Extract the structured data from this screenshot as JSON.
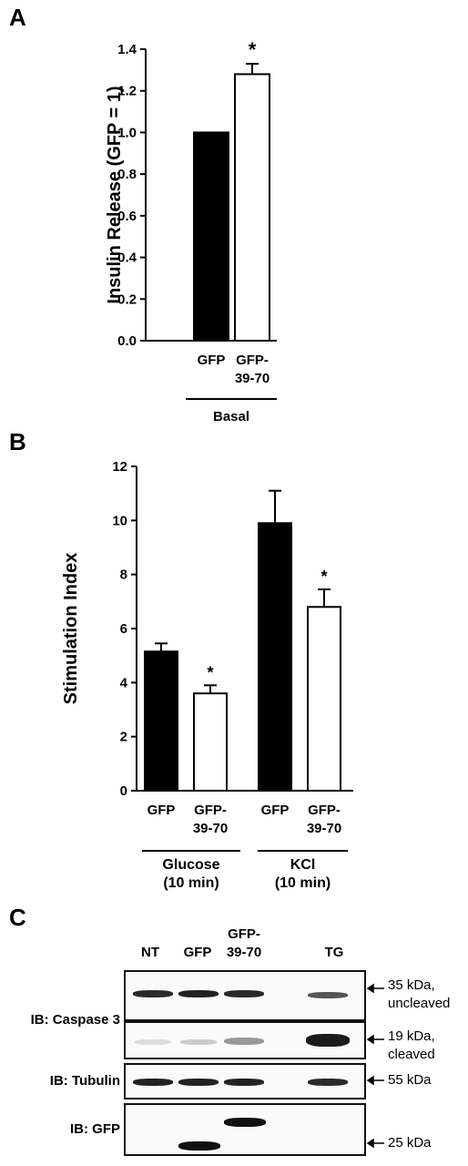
{
  "panelA": {
    "letter": "A",
    "chart_data": {
      "type": "bar",
      "categories": [
        "GFP",
        "GFP-39-70"
      ],
      "category_lines": [
        [
          "GFP"
        ],
        [
          "GFP-",
          "39-70"
        ]
      ],
      "values": [
        1.0,
        1.28
      ],
      "errors": [
        0,
        0.05
      ],
      "fills": [
        "#000000",
        "#ffffff"
      ],
      "significance": [
        "",
        "*"
      ],
      "ylabel": "Insulin Release (GFP = 1)",
      "ylim": [
        0,
        1.4
      ],
      "yticks": [
        "0.0",
        "0.2",
        "0.4",
        "0.6",
        "0.8",
        "1.0",
        "1.2",
        "1.4"
      ],
      "group_label": "Basal"
    }
  },
  "panelB": {
    "letter": "B",
    "chart_data": {
      "type": "bar",
      "categories": [
        "GFP",
        "GFP-39-70",
        "GFP",
        "GFP-39-70"
      ],
      "category_lines": [
        [
          "GFP"
        ],
        [
          "GFP-",
          "39-70"
        ],
        [
          "GFP"
        ],
        [
          "GFP-",
          "39-70"
        ]
      ],
      "values": [
        5.15,
        3.6,
        9.9,
        6.8
      ],
      "errors": [
        0.3,
        0.3,
        1.2,
        0.65
      ],
      "fills": [
        "#000000",
        "#ffffff",
        "#000000",
        "#ffffff"
      ],
      "significance": [
        "",
        "*",
        "",
        "*"
      ],
      "ylabel": "Stimulation Index",
      "ylim": [
        0,
        12
      ],
      "yticks": [
        "0",
        "2",
        "4",
        "6",
        "8",
        "10",
        "12"
      ],
      "groups": [
        {
          "lines": [
            "Glucose",
            "(10 min)"
          ]
        },
        {
          "lines": [
            "KCl",
            "(10 min)"
          ]
        }
      ]
    }
  },
  "panelC": {
    "letter": "C",
    "lanes": [
      [
        "NT"
      ],
      [
        "GFP"
      ],
      [
        "GFP-",
        "39-70"
      ],
      [
        "TG"
      ]
    ],
    "ib_caspase": "IB: Caspase 3",
    "ib_tubulin": "IB: Tubulin",
    "ib_gfp": "IB: GFP",
    "ann_35": [
      "35 kDa,",
      "uncleaved"
    ],
    "ann_19": [
      "19 kDa,",
      "cleaved"
    ],
    "ann_55": "55 kDa",
    "ann_25": "25 kDa"
  }
}
